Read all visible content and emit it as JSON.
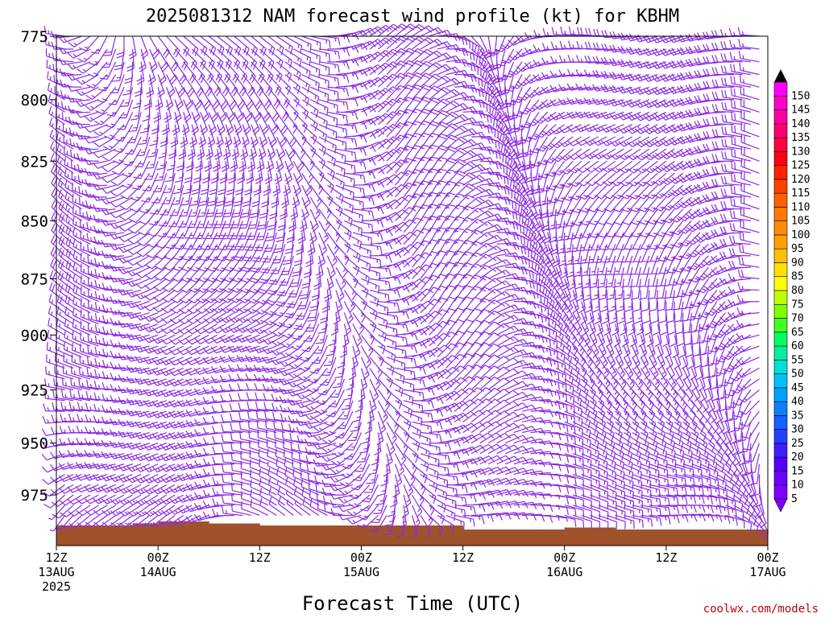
{
  "title": "2025081312 NAM forecast wind profile (kt) for KBHM",
  "watermark": "coolwx.com/models",
  "chart_data": {
    "type": "wind-barb-time-height",
    "title": "2025081312 NAM forecast wind profile (kt) for KBHM",
    "xlabel": "Forecast Time (UTC)",
    "ylabel": "",
    "y_inverted": true,
    "ylim": [
      775,
      1000
    ],
    "yticks": [
      775,
      800,
      825,
      850,
      875,
      900,
      925,
      950,
      975
    ],
    "xlim_hours": [
      0,
      84
    ],
    "xticks": [
      {
        "hour": 0,
        "lines": [
          "12Z",
          "13AUG",
          "2025"
        ]
      },
      {
        "hour": 12,
        "lines": [
          "00Z",
          "14AUG"
        ]
      },
      {
        "hour": 24,
        "lines": [
          "12Z"
        ]
      },
      {
        "hour": 36,
        "lines": [
          "00Z",
          "15AUG"
        ]
      },
      {
        "hour": 48,
        "lines": [
          "12Z"
        ]
      },
      {
        "hour": 60,
        "lines": [
          "00Z",
          "16AUG"
        ]
      },
      {
        "hour": 72,
        "lines": [
          "12Z"
        ]
      },
      {
        "hour": 84,
        "lines": [
          "00Z",
          "17AUG"
        ]
      }
    ],
    "colorbar": {
      "units": "kt",
      "levels": [
        5,
        10,
        15,
        20,
        25,
        30,
        35,
        40,
        45,
        50,
        55,
        60,
        65,
        70,
        75,
        80,
        85,
        90,
        95,
        100,
        105,
        110,
        115,
        120,
        125,
        130,
        135,
        140,
        145,
        150
      ],
      "colors": [
        "#7f00ff",
        "#6a00ff",
        "#5500ff",
        "#3c1eff",
        "#2440ff",
        "#1560ff",
        "#0a80ff",
        "#00a0ff",
        "#00c0ff",
        "#00e0d8",
        "#00f0a0",
        "#00ff60",
        "#40ff20",
        "#80ff00",
        "#c0ff00",
        "#ffff00",
        "#ffe000",
        "#ffc000",
        "#ffa000",
        "#ff8c00",
        "#ff7a00",
        "#ff6000",
        "#ff4000",
        "#ff2000",
        "#ff0010",
        "#ff0040",
        "#ff0070",
        "#ff00a0",
        "#ff00c8",
        "#ff00ff"
      ],
      "top_cap_color": "#000000",
      "bottom_cap_color": "#7f00ff"
    },
    "barb_color": "#8a2be2",
    "terrain_color": "#a0522d",
    "surface_pressure_by_hour": [
      [
        0,
        990
      ],
      [
        6,
        990
      ],
      [
        9,
        989
      ],
      [
        12,
        988
      ],
      [
        18,
        989
      ],
      [
        24,
        990
      ],
      [
        30,
        990
      ],
      [
        36,
        990
      ],
      [
        42,
        990
      ],
      [
        48,
        992
      ],
      [
        54,
        992
      ],
      [
        60,
        991
      ],
      [
        66,
        992
      ],
      [
        72,
        992
      ],
      [
        78,
        992
      ],
      [
        84,
        990
      ]
    ],
    "barb_columns_hours": [
      0,
      1,
      2,
      3,
      4,
      5,
      6,
      7,
      8,
      9,
      10,
      11,
      12,
      13,
      14,
      15,
      16,
      17,
      18,
      19,
      20,
      21,
      22,
      23,
      24,
      25,
      26,
      27,
      28,
      29,
      30,
      31,
      32,
      33,
      34,
      35,
      36,
      37,
      38,
      39,
      40,
      41,
      42,
      43,
      44,
      45,
      46,
      47,
      48,
      49,
      50,
      51,
      52,
      53,
      54,
      55,
      56,
      57,
      58,
      59,
      60,
      61,
      62,
      63,
      64,
      65,
      66,
      67,
      68,
      69,
      70,
      71,
      72,
      73,
      74,
      75,
      76,
      77,
      78,
      79,
      80,
      81,
      82,
      83,
      84
    ],
    "barb_levels_hpa": [
      775,
      780,
      785,
      790,
      795,
      800,
      805,
      810,
      815,
      820,
      825,
      830,
      835,
      840,
      845,
      850,
      855,
      860,
      865,
      870,
      875,
      880,
      885,
      890,
      895,
      900,
      905,
      910,
      915,
      920,
      925,
      930,
      935,
      940,
      945,
      950,
      955,
      960,
      965,
      970,
      975,
      980,
      985
    ]
  }
}
